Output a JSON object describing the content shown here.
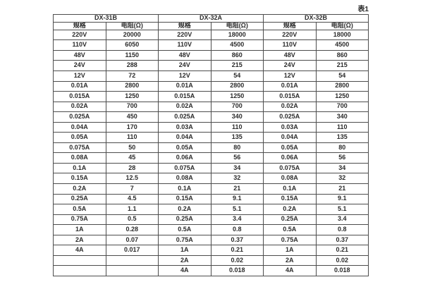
{
  "page": {
    "table_label": "表1"
  },
  "table": {
    "groups": [
      {
        "name": "DX-31B"
      },
      {
        "name": "DX-32A"
      },
      {
        "name": "DX-32B"
      }
    ],
    "col_headers": {
      "spec": "规格",
      "resistance": "电阻(Ω)"
    },
    "rows": [
      [
        "220V",
        "20000",
        "220V",
        "18000",
        "220V",
        "18000"
      ],
      [
        "110V",
        "6050",
        "110V",
        "4500",
        "110V",
        "4500"
      ],
      [
        "48V",
        "1150",
        "48V",
        "860",
        "48V",
        "860"
      ],
      [
        "24V",
        "288",
        "24V",
        "215",
        "24V",
        "215"
      ],
      [
        "12V",
        "72",
        "12V",
        "54",
        "12V",
        "54"
      ],
      [
        "0.01A",
        "2800",
        "0.01A",
        "2800",
        "0.01A",
        "2800"
      ],
      [
        "0.015A",
        "1250",
        "0.015A",
        "1250",
        "0.015A",
        "1250"
      ],
      [
        "0.02A",
        "700",
        "0.02A",
        "700",
        "0.02A",
        "700"
      ],
      [
        "0.025A",
        "450",
        "0.025A",
        "340",
        "0.025A",
        "340"
      ],
      [
        "0.04A",
        "170",
        "0.03A",
        "110",
        "0.03A",
        "110"
      ],
      [
        "0.05A",
        "110",
        "0.04A",
        "135",
        "0.04A",
        "135"
      ],
      [
        "0.075A",
        "50",
        "0.05A",
        "80",
        "0.05A",
        "80"
      ],
      [
        "0.08A",
        "45",
        "0.06A",
        "56",
        "0.06A",
        "56"
      ],
      [
        "0.1A",
        "28",
        "0.075A",
        "34",
        "0.075A",
        "34"
      ],
      [
        "0.15A",
        "12.5",
        "0.08A",
        "32",
        "0.08A",
        "32"
      ],
      [
        "0.2A",
        "7",
        "0.1A",
        "21",
        "0.1A",
        "21"
      ],
      [
        "0.25A",
        "4.5",
        "0.15A",
        "9.1",
        "0.15A",
        "9.1"
      ],
      [
        "0.5A",
        "1.1",
        "0.2A",
        "5.1",
        "0.2A",
        "5.1"
      ],
      [
        "0.75A",
        "0.5",
        "0.25A",
        "3.4",
        "0.25A",
        "3.4"
      ],
      [
        "1A",
        "0.28",
        "0.5A",
        "0.8",
        "0.5A",
        "0.8"
      ],
      [
        "2A",
        "0.07",
        "0.75A",
        "0.37",
        "0.75A",
        "0.37"
      ],
      [
        "4A",
        "0.017",
        "1A",
        "0.21",
        "1A",
        "0.21"
      ],
      [
        "",
        "",
        "2A",
        "0.02",
        "2A",
        "0.02"
      ],
      [
        "",
        "",
        "4A",
        "0.018",
        "4A",
        "0.018"
      ]
    ]
  }
}
